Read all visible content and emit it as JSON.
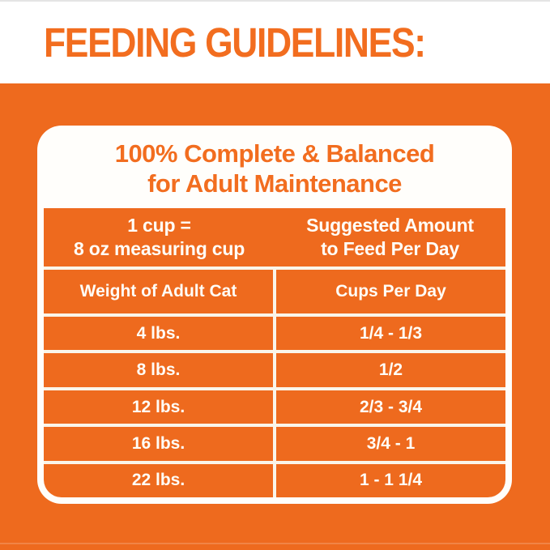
{
  "colors": {
    "background_orange": "#ee6a1e",
    "accent_orange_text": "#f26d1f",
    "card_white": "#fffefb",
    "grid_line_cream": "#faf5ea",
    "table_text_white": "#fffdf7"
  },
  "banner": {
    "title": "FEEDING GUIDELINES:"
  },
  "card": {
    "heading": {
      "line1": "100% Complete & Balanced",
      "line2": "for Adult Maintenance"
    },
    "cup_info": {
      "line1": "1 cup =",
      "line2": "8 oz measuring cup"
    },
    "suggested_amount": {
      "line1": "Suggested Amount",
      "line2": "to Feed Per Day"
    },
    "table": {
      "col1_header": "Weight of Adult Cat",
      "col2_header": "Cups Per Day",
      "rows": [
        {
          "weight": "4 lbs.",
          "cups": "1/4 - 1/3"
        },
        {
          "weight": "8 lbs.",
          "cups": "1/2"
        },
        {
          "weight": "12 lbs.",
          "cups": "2/3 - 3/4"
        },
        {
          "weight": "16 lbs.",
          "cups": "3/4 - 1"
        },
        {
          "weight": "22 lbs.",
          "cups": "1 - 1 1/4"
        }
      ]
    }
  }
}
